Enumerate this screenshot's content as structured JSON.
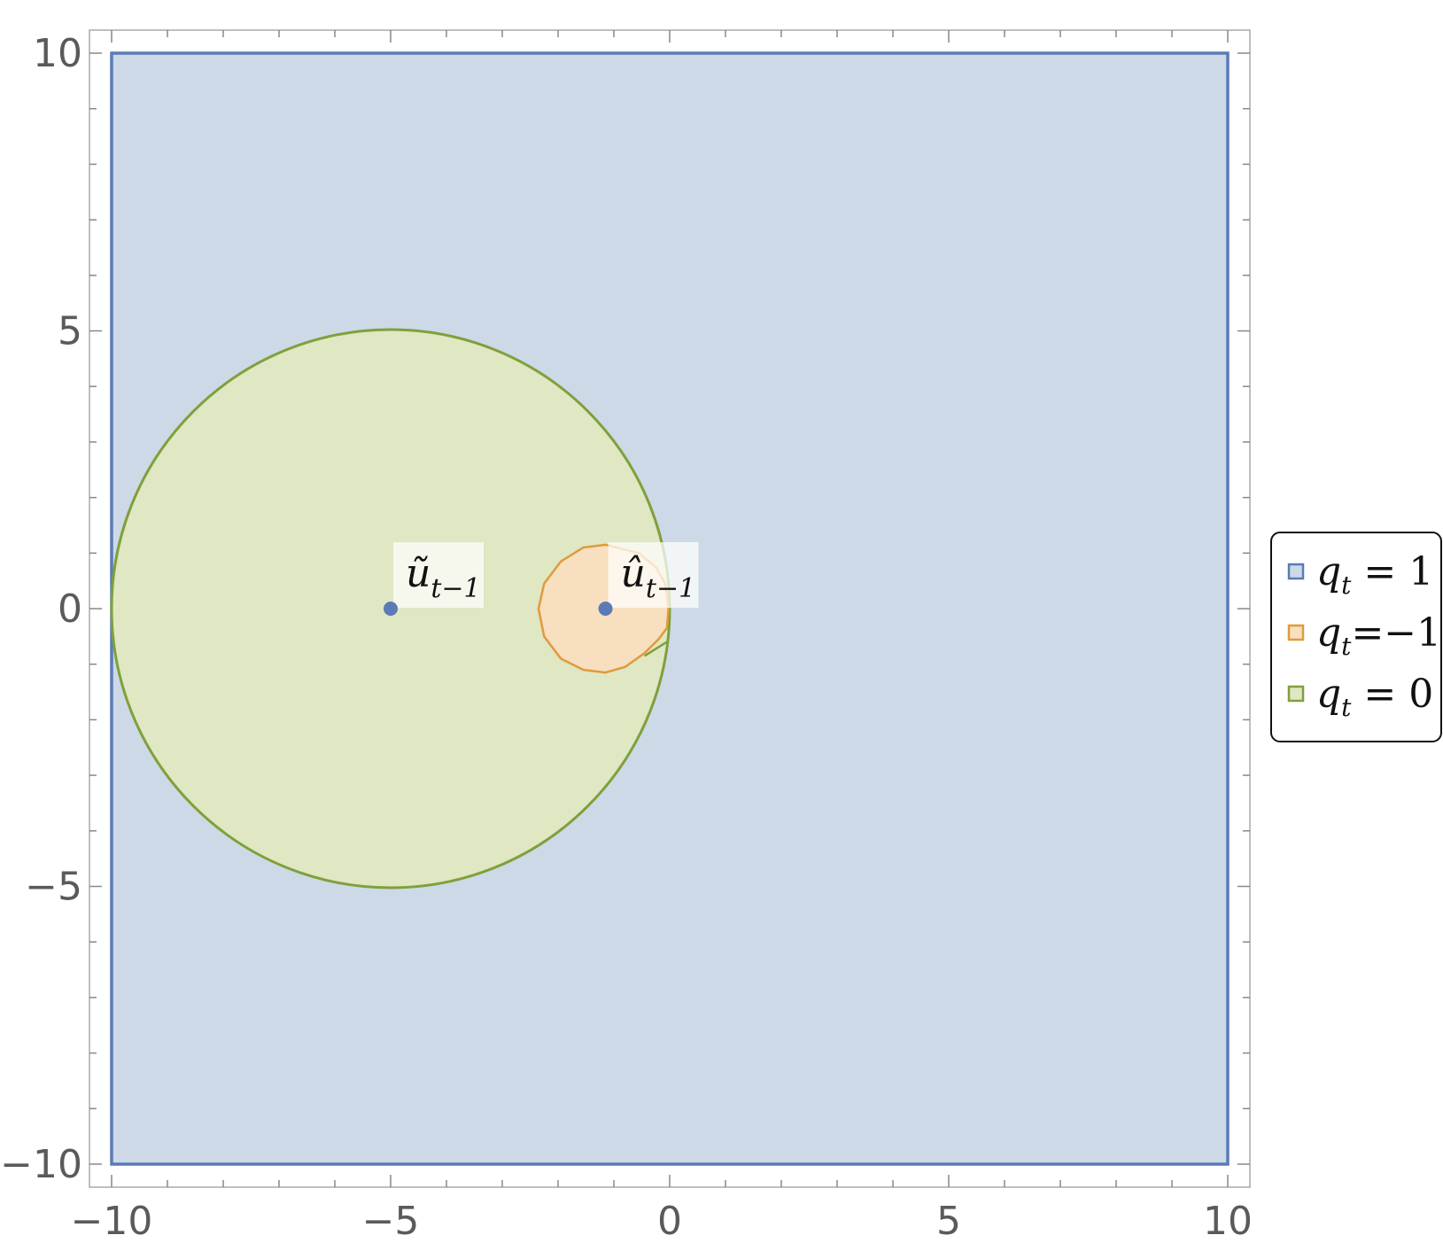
{
  "chart_data": {
    "type": "region",
    "xlim": [
      -10,
      10
    ],
    "ylim": [
      -10,
      10
    ],
    "x_ticks": [
      -10,
      -5,
      0,
      5,
      10
    ],
    "y_ticks": [
      -10,
      -5,
      0,
      5,
      10
    ],
    "x_tick_labels": [
      "−10",
      "−5",
      "0",
      "5",
      "10"
    ],
    "y_tick_labels": [
      "−10",
      "−5",
      "0",
      "5",
      "10"
    ],
    "grid": false,
    "legend_position": "right",
    "regions": [
      {
        "name_main": "q",
        "name_sub": "t",
        "name_rest": " = 1",
        "shape": "rectangle",
        "x": [
          -10,
          10
        ],
        "y": [
          -10,
          10
        ],
        "fill": "#cdd9e7",
        "stroke": "#5a7bb5"
      },
      {
        "name_main": "q",
        "name_sub": "t",
        "name_rest": " = 0",
        "shape": "circle",
        "center": [
          -5,
          0
        ],
        "radius": 5,
        "fill": "#dfe7c3",
        "stroke": "#7fa03a"
      },
      {
        "name_main": "q",
        "name_sub": "t",
        "name_rest": "=−1",
        "shape": "polygon",
        "points": [
          [
            -1.15,
            1.15
          ],
          [
            -1.55,
            1.1
          ],
          [
            -1.95,
            0.85
          ],
          [
            -2.25,
            0.45
          ],
          [
            -2.35,
            0.0
          ],
          [
            -2.25,
            -0.5
          ],
          [
            -1.95,
            -0.9
          ],
          [
            -1.55,
            -1.1
          ],
          [
            -1.15,
            -1.15
          ],
          [
            -0.8,
            -1.05
          ],
          [
            -0.45,
            -0.8
          ],
          [
            -0.2,
            -0.55
          ],
          [
            -0.05,
            -0.35
          ],
          [
            -0.02,
            0.0
          ],
          [
            -0.08,
            0.45
          ],
          [
            -0.25,
            0.75
          ],
          [
            -0.55,
            1.0
          ]
        ],
        "fill": "#f7dfbf",
        "stroke": "#e09a3c"
      }
    ],
    "points": [
      {
        "x": -5,
        "y": 0,
        "label_main": "ũ",
        "label_sub": "t−1",
        "color": "#5a7bb5"
      },
      {
        "x": -1.15,
        "y": 0,
        "label_main": "û",
        "label_sub": "t−1",
        "color": "#5a7bb5"
      }
    ]
  }
}
